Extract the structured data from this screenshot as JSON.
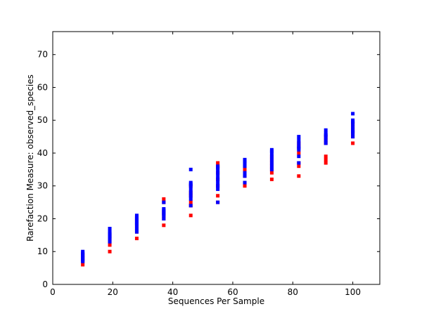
{
  "chart_data": {
    "type": "scatter",
    "title": "",
    "xlabel": "Sequences Per Sample",
    "ylabel": "Rarefaction Measure: observed_species",
    "xlim": [
      0,
      109
    ],
    "ylim": [
      0,
      77
    ],
    "xticks": [
      0,
      20,
      40,
      60,
      80,
      100
    ],
    "yticks": [
      0,
      10,
      20,
      30,
      40,
      50,
      60,
      70
    ],
    "grid": false,
    "series": [
      {
        "color": "#ff0000",
        "points": [
          [
            10,
            6
          ],
          [
            10,
            7
          ],
          [
            10,
            8
          ],
          [
            10,
            9
          ],
          [
            19,
            10
          ],
          [
            19,
            12
          ],
          [
            19,
            13
          ],
          [
            19,
            14
          ],
          [
            19,
            15
          ],
          [
            28,
            14
          ],
          [
            28,
            16
          ],
          [
            28,
            17
          ],
          [
            28,
            18
          ],
          [
            28,
            19
          ],
          [
            28,
            20
          ],
          [
            37,
            18
          ],
          [
            37,
            20
          ],
          [
            37,
            21
          ],
          [
            37,
            22
          ],
          [
            37,
            25
          ],
          [
            37,
            26
          ],
          [
            46,
            21
          ],
          [
            46,
            24
          ],
          [
            46,
            25
          ],
          [
            46,
            27
          ],
          [
            46,
            28
          ],
          [
            46,
            30
          ],
          [
            55,
            25
          ],
          [
            55,
            27
          ],
          [
            55,
            30
          ],
          [
            55,
            32
          ],
          [
            55,
            34
          ],
          [
            55,
            36
          ],
          [
            55,
            37
          ],
          [
            64,
            30
          ],
          [
            64,
            31
          ],
          [
            64,
            33
          ],
          [
            64,
            35
          ],
          [
            64,
            36
          ],
          [
            64,
            37
          ],
          [
            73,
            32
          ],
          [
            73,
            34
          ],
          [
            73,
            35
          ],
          [
            73,
            36
          ],
          [
            73,
            37
          ],
          [
            73,
            38
          ],
          [
            73,
            39
          ],
          [
            82,
            33
          ],
          [
            82,
            36
          ],
          [
            82,
            37
          ],
          [
            82,
            40
          ],
          [
            82,
            42
          ],
          [
            82,
            43
          ],
          [
            91,
            37
          ],
          [
            91,
            38
          ],
          [
            91,
            39
          ],
          [
            91,
            43
          ],
          [
            91,
            44
          ],
          [
            91,
            45
          ],
          [
            100,
            43
          ],
          [
            100,
            45
          ],
          [
            100,
            46
          ],
          [
            100,
            47
          ],
          [
            100,
            48
          ],
          [
            100,
            49
          ]
        ]
      },
      {
        "color": "#0000ff",
        "points": [
          [
            10,
            7
          ],
          [
            10,
            7.5
          ],
          [
            10,
            8
          ],
          [
            10,
            8.5
          ],
          [
            10,
            9
          ],
          [
            10,
            9.5
          ],
          [
            10,
            10
          ],
          [
            19,
            13
          ],
          [
            19,
            14
          ],
          [
            19,
            14.5
          ],
          [
            19,
            15
          ],
          [
            19,
            15.5
          ],
          [
            19,
            16
          ],
          [
            19,
            17
          ],
          [
            28,
            16
          ],
          [
            28,
            17
          ],
          [
            28,
            18
          ],
          [
            28,
            18.5
          ],
          [
            28,
            19
          ],
          [
            28,
            19.5
          ],
          [
            28,
            20
          ],
          [
            28,
            20.5
          ],
          [
            28,
            21
          ],
          [
            37,
            20
          ],
          [
            37,
            21
          ],
          [
            37,
            21.5
          ],
          [
            37,
            22
          ],
          [
            37,
            22.5
          ],
          [
            37,
            23
          ],
          [
            37,
            25
          ],
          [
            46,
            24
          ],
          [
            46,
            26
          ],
          [
            46,
            27
          ],
          [
            46,
            28
          ],
          [
            46,
            29
          ],
          [
            46,
            30
          ],
          [
            46,
            30.5
          ],
          [
            46,
            31
          ],
          [
            46,
            35
          ],
          [
            55,
            25
          ],
          [
            55,
            29
          ],
          [
            55,
            30
          ],
          [
            55,
            31
          ],
          [
            55,
            32
          ],
          [
            55,
            33
          ],
          [
            55,
            34
          ],
          [
            55,
            35
          ],
          [
            55,
            35.5
          ],
          [
            55,
            36
          ],
          [
            64,
            31
          ],
          [
            64,
            33
          ],
          [
            64,
            34
          ],
          [
            64,
            36
          ],
          [
            64,
            37
          ],
          [
            64,
            37.5
          ],
          [
            64,
            38
          ],
          [
            73,
            35
          ],
          [
            73,
            36
          ],
          [
            73,
            37
          ],
          [
            73,
            38
          ],
          [
            73,
            39
          ],
          [
            73,
            40
          ],
          [
            73,
            40.5
          ],
          [
            73,
            41
          ],
          [
            82,
            37
          ],
          [
            82,
            39
          ],
          [
            82,
            41
          ],
          [
            82,
            41.5
          ],
          [
            82,
            42
          ],
          [
            82,
            43
          ],
          [
            82,
            44
          ],
          [
            82,
            45
          ],
          [
            91,
            43
          ],
          [
            91,
            44
          ],
          [
            91,
            45
          ],
          [
            91,
            45.5
          ],
          [
            91,
            46
          ],
          [
            91,
            47
          ],
          [
            100,
            45
          ],
          [
            100,
            46
          ],
          [
            100,
            46.5
          ],
          [
            100,
            47
          ],
          [
            100,
            48
          ],
          [
            100,
            49
          ],
          [
            100,
            49.5
          ],
          [
            100,
            50
          ],
          [
            100,
            52
          ]
        ]
      }
    ]
  }
}
